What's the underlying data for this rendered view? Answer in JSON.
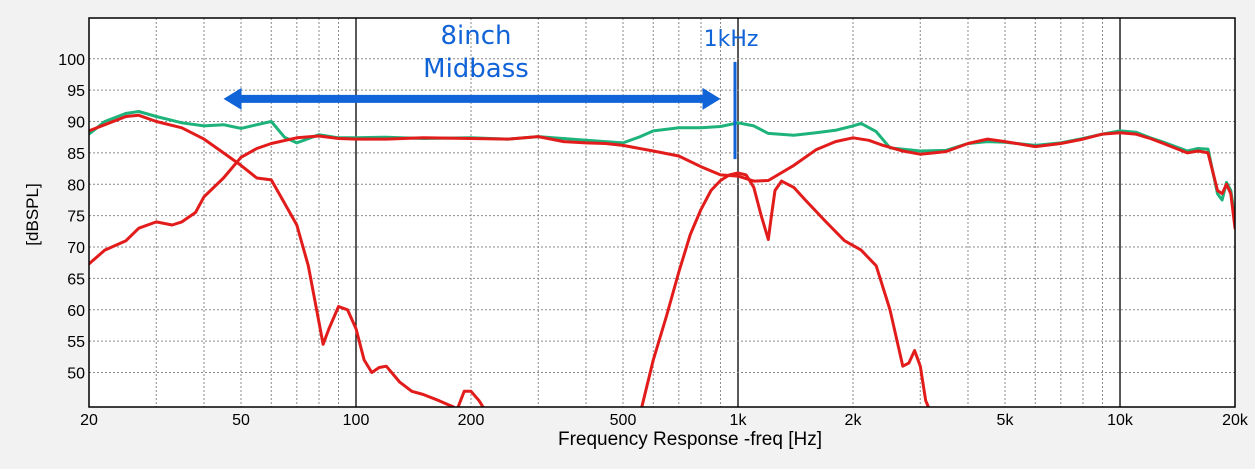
{
  "chart_data": {
    "type": "line",
    "xscale": "log",
    "xlim": [
      20,
      20000
    ],
    "ylim": [
      44.5,
      106.5
    ],
    "xlabel": "Frequency Response -freq [Hz]",
    "ylabel": "[dBSPL]",
    "grid": true,
    "x_ticks": [
      {
        "value": 20,
        "label": "20"
      },
      {
        "value": 50,
        "label": "50"
      },
      {
        "value": 100,
        "label": "100"
      },
      {
        "value": 200,
        "label": "200"
      },
      {
        "value": 500,
        "label": "500"
      },
      {
        "value": 1000,
        "label": "1k"
      },
      {
        "value": 2000,
        "label": "2k"
      },
      {
        "value": 5000,
        "label": "5k"
      },
      {
        "value": 10000,
        "label": "10k"
      },
      {
        "value": 20000,
        "label": "20k"
      }
    ],
    "y_ticks": [
      50,
      55,
      60,
      65,
      70,
      75,
      80,
      85,
      90,
      95,
      100
    ],
    "series": [
      {
        "color": "#1db37a",
        "points": [
          [
            20,
            88
          ],
          [
            22,
            90
          ],
          [
            25,
            91.3
          ],
          [
            27,
            91.6
          ],
          [
            30,
            90.8
          ],
          [
            35,
            89.8
          ],
          [
            40,
            89.3
          ],
          [
            45,
            89.5
          ],
          [
            50,
            88.9
          ],
          [
            55,
            89.5
          ],
          [
            60,
            90
          ],
          [
            65,
            87.5
          ],
          [
            70,
            86.6
          ],
          [
            80,
            87.9
          ],
          [
            90,
            87.4
          ],
          [
            100,
            87.4
          ],
          [
            120,
            87.5
          ],
          [
            150,
            87.3
          ],
          [
            200,
            87.4
          ],
          [
            250,
            87.2
          ],
          [
            300,
            87.6
          ],
          [
            400,
            87
          ],
          [
            500,
            86.6
          ],
          [
            550,
            87.5
          ],
          [
            600,
            88.5
          ],
          [
            700,
            89
          ],
          [
            800,
            89
          ],
          [
            900,
            89.2
          ],
          [
            1000,
            89.8
          ],
          [
            1100,
            89.3
          ],
          [
            1200,
            88.1
          ],
          [
            1400,
            87.8
          ],
          [
            1600,
            88.2
          ],
          [
            1800,
            88.6
          ],
          [
            2000,
            89.3
          ],
          [
            2100,
            89.7
          ],
          [
            2300,
            88.4
          ],
          [
            2500,
            85.8
          ],
          [
            3000,
            85.3
          ],
          [
            3500,
            85.4
          ],
          [
            4000,
            86.5
          ],
          [
            4500,
            86.8
          ],
          [
            5000,
            86.7
          ],
          [
            6000,
            86.2
          ],
          [
            7000,
            86.6
          ],
          [
            8000,
            87.3
          ],
          [
            9000,
            88
          ],
          [
            10000,
            88.5
          ],
          [
            11000,
            88.3
          ],
          [
            12000,
            87.4
          ],
          [
            13000,
            86.7
          ],
          [
            15000,
            85.3
          ],
          [
            16000,
            85.7
          ],
          [
            17000,
            85.6
          ],
          [
            18000,
            78.5
          ],
          [
            18500,
            77.5
          ],
          [
            19000,
            80.3
          ],
          [
            19500,
            79
          ],
          [
            20000,
            74.5
          ]
        ]
      },
      {
        "color": "#e21b1b",
        "points": [
          [
            20,
            88.5
          ],
          [
            22,
            89.5
          ],
          [
            25,
            90.8
          ],
          [
            27,
            91
          ],
          [
            30,
            90
          ],
          [
            35,
            89
          ],
          [
            40,
            87.2
          ],
          [
            45,
            85
          ],
          [
            50,
            83
          ],
          [
            55,
            81
          ],
          [
            60,
            80.7
          ],
          [
            65,
            77
          ],
          [
            70,
            73.5
          ],
          [
            75,
            67
          ],
          [
            80,
            58
          ],
          [
            82,
            54.5
          ],
          [
            85,
            57
          ],
          [
            90,
            60.5
          ],
          [
            95,
            60
          ],
          [
            100,
            57
          ],
          [
            105,
            52
          ],
          [
            110,
            50
          ],
          [
            115,
            50.8
          ],
          [
            120,
            51
          ],
          [
            130,
            48.5
          ],
          [
            140,
            47
          ],
          [
            150,
            46.5
          ],
          [
            165,
            45.5
          ],
          [
            180,
            44.5
          ]
        ]
      },
      {
        "color": "#e21b1b",
        "points": [
          [
            20,
            67.3
          ],
          [
            22,
            69.5
          ],
          [
            25,
            71
          ],
          [
            27,
            73
          ],
          [
            30,
            74
          ],
          [
            33,
            73.5
          ],
          [
            35,
            74
          ],
          [
            38,
            75.5
          ],
          [
            40,
            78
          ],
          [
            45,
            81
          ],
          [
            50,
            84.3
          ],
          [
            55,
            85.7
          ],
          [
            60,
            86.5
          ],
          [
            70,
            87.4
          ],
          [
            80,
            87.7
          ],
          [
            90,
            87.3
          ],
          [
            100,
            87.2
          ],
          [
            120,
            87.2
          ],
          [
            150,
            87.4
          ],
          [
            200,
            87.3
          ],
          [
            250,
            87.2
          ],
          [
            300,
            87.6
          ],
          [
            350,
            86.8
          ],
          [
            400,
            86.6
          ],
          [
            450,
            86.5
          ],
          [
            500,
            86.2
          ],
          [
            600,
            85.3
          ],
          [
            700,
            84.5
          ],
          [
            800,
            82.8
          ],
          [
            900,
            81.5
          ],
          [
            1000,
            81.3
          ],
          [
            1100,
            80.5
          ],
          [
            1200,
            80.6
          ],
          [
            1400,
            83
          ],
          [
            1600,
            85.5
          ],
          [
            1800,
            86.8
          ],
          [
            2000,
            87.4
          ],
          [
            2200,
            87
          ],
          [
            2400,
            86.2
          ],
          [
            2700,
            85.3
          ],
          [
            3000,
            84.8
          ],
          [
            3500,
            85.2
          ],
          [
            4000,
            86.5
          ],
          [
            4500,
            87.2
          ],
          [
            5000,
            86.8
          ],
          [
            6000,
            86
          ],
          [
            7000,
            86.5
          ],
          [
            8000,
            87.2
          ],
          [
            9000,
            88
          ],
          [
            10000,
            88.2
          ],
          [
            11000,
            88
          ],
          [
            12000,
            87.3
          ],
          [
            13000,
            86.5
          ],
          [
            15000,
            85
          ],
          [
            16000,
            85.3
          ],
          [
            17000,
            85
          ],
          [
            18000,
            79
          ],
          [
            18500,
            78.5
          ],
          [
            19000,
            80
          ],
          [
            19500,
            78.5
          ],
          [
            20000,
            73
          ]
        ]
      },
      {
        "color": "#e21b1b",
        "points": [
          [
            560,
            44.5
          ],
          [
            600,
            52
          ],
          [
            650,
            59
          ],
          [
            700,
            66
          ],
          [
            750,
            72
          ],
          [
            800,
            76
          ],
          [
            850,
            79
          ],
          [
            900,
            80.6
          ],
          [
            950,
            81.5
          ],
          [
            1000,
            81.8
          ],
          [
            1050,
            81.5
          ],
          [
            1100,
            79.5
          ],
          [
            1150,
            75
          ],
          [
            1200,
            71.2
          ],
          [
            1220,
            74.5
          ],
          [
            1250,
            79
          ],
          [
            1300,
            80.5
          ],
          [
            1400,
            79.5
          ],
          [
            1500,
            77.5
          ],
          [
            1700,
            74
          ],
          [
            1900,
            71
          ],
          [
            2100,
            69.5
          ],
          [
            2300,
            67
          ],
          [
            2500,
            60
          ],
          [
            2700,
            51
          ],
          [
            2800,
            51.5
          ],
          [
            2900,
            53.5
          ],
          [
            3000,
            51
          ],
          [
            3100,
            45.5
          ],
          [
            3150,
            44.5
          ]
        ]
      },
      {
        "color": "#e21b1b",
        "points": [
          [
            185,
            44.5
          ],
          [
            192,
            47
          ],
          [
            200,
            47
          ],
          [
            210,
            45.5
          ],
          [
            215,
            44.5
          ]
        ]
      }
    ],
    "annotations": {
      "midbass_line1": "8inch",
      "midbass_line2": "Midbass",
      "crossover_label": "1kHz",
      "arrow_from": 45,
      "arrow_to": 900,
      "marker_at": 1000
    }
  },
  "colors": {
    "plot_background": "#ffffff",
    "frame": "#000000",
    "annotation_blue": "#1163d8"
  }
}
